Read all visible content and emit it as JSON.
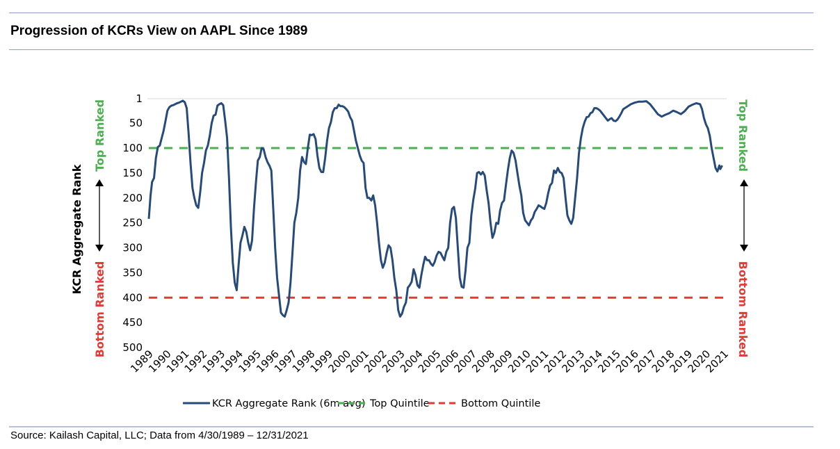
{
  "title": "Progression of KCRs View on AAPL Since 1989",
  "source": "Source: Kailash Capital, LLC; Data from 4/30/1989 – 12/31/2021",
  "colors": {
    "series": "#264a7a",
    "top_quintile": "#4caf50",
    "bottom_quintile": "#e53935",
    "rule": "#8ea2c8"
  },
  "chart_data": {
    "type": "line",
    "title": "Progression of KCRs View on AAPL Since 1989",
    "xlabel": "",
    "ylabel": "KCR Aggregate Rank",
    "y_inverted": true,
    "ylim": [
      1,
      500
    ],
    "xlim": [
      1989.33,
      2022.0
    ],
    "y_ticks": [
      "1",
      "50",
      "100",
      "150",
      "200",
      "250",
      "300",
      "350",
      "400",
      "450",
      "500"
    ],
    "x_ticks": [
      "1989",
      "1990",
      "1991",
      "1992",
      "1993",
      "1994",
      "1995",
      "1996",
      "1997",
      "1998",
      "1999",
      "2000",
      "2001",
      "2002",
      "2003",
      "2004",
      "2005",
      "2006",
      "2007",
      "2008",
      "2009",
      "2010",
      "2011",
      "2012",
      "2013",
      "2014",
      "2015",
      "2016",
      "2017",
      "2018",
      "2019",
      "2020",
      "2021"
    ],
    "left_annotations": {
      "top": "Top Ranked",
      "bottom": "Bottom Ranked"
    },
    "right_annotations": {
      "top": "Top Ranked",
      "bottom": "Bottom Ranked"
    },
    "legend_position": "bottom",
    "series": [
      {
        "name": "KCR Aggregate Rank (6m avg)",
        "style": "solid",
        "points": [
          [
            1989.33,
            242
          ],
          [
            1989.42,
            195
          ],
          [
            1989.5,
            168
          ],
          [
            1989.6,
            160
          ],
          [
            1989.7,
            120
          ],
          [
            1989.8,
            98
          ],
          [
            1989.9,
            95
          ],
          [
            1990.0,
            80
          ],
          [
            1990.1,
            65
          ],
          [
            1990.2,
            45
          ],
          [
            1990.3,
            25
          ],
          [
            1990.4,
            18
          ],
          [
            1990.5,
            15
          ],
          [
            1990.6,
            14
          ],
          [
            1990.7,
            12
          ],
          [
            1990.8,
            10
          ],
          [
            1990.9,
            9
          ],
          [
            1991.0,
            7
          ],
          [
            1991.1,
            5
          ],
          [
            1991.2,
            8
          ],
          [
            1991.3,
            20
          ],
          [
            1991.4,
            70
          ],
          [
            1991.5,
            130
          ],
          [
            1991.6,
            180
          ],
          [
            1991.7,
            200
          ],
          [
            1991.8,
            215
          ],
          [
            1991.9,
            220
          ],
          [
            1992.0,
            190
          ],
          [
            1992.1,
            150
          ],
          [
            1992.2,
            130
          ],
          [
            1992.3,
            105
          ],
          [
            1992.4,
            95
          ],
          [
            1992.5,
            75
          ],
          [
            1992.6,
            50
          ],
          [
            1992.7,
            35
          ],
          [
            1992.8,
            33
          ],
          [
            1992.9,
            15
          ],
          [
            1993.0,
            12
          ],
          [
            1993.1,
            10
          ],
          [
            1993.2,
            14
          ],
          [
            1993.3,
            45
          ],
          [
            1993.4,
            80
          ],
          [
            1993.5,
            160
          ],
          [
            1993.6,
            260
          ],
          [
            1993.7,
            330
          ],
          [
            1993.8,
            370
          ],
          [
            1993.9,
            385
          ],
          [
            1994.0,
            335
          ],
          [
            1994.1,
            290
          ],
          [
            1994.2,
            275
          ],
          [
            1994.3,
            258
          ],
          [
            1994.4,
            268
          ],
          [
            1994.5,
            290
          ],
          [
            1994.6,
            305
          ],
          [
            1994.7,
            285
          ],
          [
            1994.8,
            220
          ],
          [
            1994.9,
            170
          ],
          [
            1995.0,
            125
          ],
          [
            1995.1,
            118
          ],
          [
            1995.2,
            100
          ],
          [
            1995.3,
            102
          ],
          [
            1995.4,
            118
          ],
          [
            1995.5,
            128
          ],
          [
            1995.6,
            135
          ],
          [
            1995.7,
            145
          ],
          [
            1995.8,
            220
          ],
          [
            1995.9,
            300
          ],
          [
            1996.0,
            360
          ],
          [
            1996.1,
            395
          ],
          [
            1996.2,
            430
          ],
          [
            1996.3,
            435
          ],
          [
            1996.4,
            438
          ],
          [
            1996.5,
            425
          ],
          [
            1996.6,
            410
          ],
          [
            1996.7,
            370
          ],
          [
            1996.8,
            310
          ],
          [
            1996.9,
            250
          ],
          [
            1997.0,
            230
          ],
          [
            1997.1,
            200
          ],
          [
            1997.2,
            145
          ],
          [
            1997.3,
            118
          ],
          [
            1997.4,
            128
          ],
          [
            1997.5,
            132
          ],
          [
            1997.6,
            100
          ],
          [
            1997.7,
            73
          ],
          [
            1997.8,
            74
          ],
          [
            1997.9,
            72
          ],
          [
            1998.0,
            82
          ],
          [
            1998.1,
            115
          ],
          [
            1998.2,
            140
          ],
          [
            1998.3,
            148
          ],
          [
            1998.4,
            148
          ],
          [
            1998.5,
            120
          ],
          [
            1998.6,
            85
          ],
          [
            1998.7,
            60
          ],
          [
            1998.8,
            48
          ],
          [
            1998.9,
            28
          ],
          [
            1999.0,
            20
          ],
          [
            1999.1,
            20
          ],
          [
            1999.2,
            13
          ],
          [
            1999.3,
            16
          ],
          [
            1999.4,
            16
          ],
          [
            1999.5,
            18
          ],
          [
            1999.6,
            22
          ],
          [
            1999.7,
            27
          ],
          [
            1999.8,
            38
          ],
          [
            1999.9,
            45
          ],
          [
            2000.0,
            65
          ],
          [
            2000.1,
            85
          ],
          [
            2000.2,
            100
          ],
          [
            2000.3,
            115
          ],
          [
            2000.4,
            125
          ],
          [
            2000.5,
            130
          ],
          [
            2000.6,
            180
          ],
          [
            2000.7,
            200
          ],
          [
            2000.8,
            200
          ],
          [
            2000.9,
            205
          ],
          [
            2001.0,
            195
          ],
          [
            2001.1,
            215
          ],
          [
            2001.2,
            250
          ],
          [
            2001.3,
            290
          ],
          [
            2001.4,
            325
          ],
          [
            2001.5,
            340
          ],
          [
            2001.6,
            330
          ],
          [
            2001.7,
            310
          ],
          [
            2001.8,
            295
          ],
          [
            2001.9,
            300
          ],
          [
            2002.0,
            325
          ],
          [
            2002.1,
            360
          ],
          [
            2002.2,
            385
          ],
          [
            2002.3,
            425
          ],
          [
            2002.4,
            438
          ],
          [
            2002.5,
            432
          ],
          [
            2002.6,
            418
          ],
          [
            2002.7,
            410
          ],
          [
            2002.8,
            380
          ],
          [
            2002.9,
            375
          ],
          [
            2003.0,
            368
          ],
          [
            2003.1,
            343
          ],
          [
            2003.2,
            355
          ],
          [
            2003.3,
            375
          ],
          [
            2003.4,
            380
          ],
          [
            2003.5,
            355
          ],
          [
            2003.6,
            335
          ],
          [
            2003.7,
            318
          ],
          [
            2003.8,
            325
          ],
          [
            2003.9,
            325
          ],
          [
            2004.0,
            332
          ],
          [
            2004.1,
            336
          ],
          [
            2004.2,
            328
          ],
          [
            2004.3,
            315
          ],
          [
            2004.4,
            308
          ],
          [
            2004.5,
            310
          ],
          [
            2004.6,
            318
          ],
          [
            2004.7,
            325
          ],
          [
            2004.8,
            308
          ],
          [
            2004.9,
            300
          ],
          [
            2005.0,
            250
          ],
          [
            2005.1,
            222
          ],
          [
            2005.2,
            218
          ],
          [
            2005.3,
            240
          ],
          [
            2005.4,
            300
          ],
          [
            2005.5,
            360
          ],
          [
            2005.6,
            378
          ],
          [
            2005.7,
            380
          ],
          [
            2005.8,
            345
          ],
          [
            2005.9,
            300
          ],
          [
            2006.0,
            290
          ],
          [
            2006.1,
            235
          ],
          [
            2006.2,
            205
          ],
          [
            2006.3,
            182
          ],
          [
            2006.4,
            150
          ],
          [
            2006.5,
            148
          ],
          [
            2006.6,
            153
          ],
          [
            2006.7,
            148
          ],
          [
            2006.8,
            155
          ],
          [
            2006.9,
            185
          ],
          [
            2007.0,
            210
          ],
          [
            2007.1,
            250
          ],
          [
            2007.2,
            280
          ],
          [
            2007.3,
            270
          ],
          [
            2007.4,
            250
          ],
          [
            2007.5,
            252
          ],
          [
            2007.6,
            225
          ],
          [
            2007.7,
            210
          ],
          [
            2007.8,
            205
          ],
          [
            2007.9,
            175
          ],
          [
            2008.0,
            145
          ],
          [
            2008.1,
            120
          ],
          [
            2008.2,
            105
          ],
          [
            2008.3,
            110
          ],
          [
            2008.4,
            125
          ],
          [
            2008.5,
            150
          ],
          [
            2008.6,
            175
          ],
          [
            2008.7,
            195
          ],
          [
            2008.8,
            230
          ],
          [
            2008.9,
            245
          ],
          [
            2009.0,
            250
          ],
          [
            2009.1,
            255
          ],
          [
            2009.2,
            245
          ],
          [
            2009.3,
            240
          ],
          [
            2009.4,
            228
          ],
          [
            2009.5,
            222
          ],
          [
            2009.6,
            215
          ],
          [
            2009.7,
            217
          ],
          [
            2009.8,
            220
          ],
          [
            2009.9,
            222
          ],
          [
            2010.0,
            210
          ],
          [
            2010.1,
            190
          ],
          [
            2010.2,
            175
          ],
          [
            2010.3,
            170
          ],
          [
            2010.4,
            145
          ],
          [
            2010.5,
            150
          ],
          [
            2010.6,
            140
          ],
          [
            2010.7,
            148
          ],
          [
            2010.8,
            150
          ],
          [
            2010.9,
            160
          ],
          [
            2011.0,
            200
          ],
          [
            2011.1,
            235
          ],
          [
            2011.2,
            245
          ],
          [
            2011.3,
            252
          ],
          [
            2011.4,
            240
          ],
          [
            2011.5,
            200
          ],
          [
            2011.6,
            160
          ],
          [
            2011.7,
            110
          ],
          [
            2011.8,
            80
          ],
          [
            2011.9,
            60
          ],
          [
            2012.0,
            47
          ],
          [
            2012.1,
            38
          ],
          [
            2012.2,
            37
          ],
          [
            2012.3,
            30
          ],
          [
            2012.4,
            28
          ],
          [
            2012.5,
            20
          ],
          [
            2012.6,
            20
          ],
          [
            2012.7,
            22
          ],
          [
            2012.8,
            25
          ],
          [
            2012.9,
            30
          ],
          [
            2013.0,
            35
          ],
          [
            2013.1,
            40
          ],
          [
            2013.2,
            45
          ],
          [
            2013.3,
            42
          ],
          [
            2013.4,
            40
          ],
          [
            2013.5,
            45
          ],
          [
            2013.6,
            46
          ],
          [
            2013.7,
            43
          ],
          [
            2013.8,
            37
          ],
          [
            2013.9,
            30
          ],
          [
            2014.0,
            22
          ],
          [
            2014.2,
            17
          ],
          [
            2014.4,
            12
          ],
          [
            2014.6,
            9
          ],
          [
            2014.8,
            7
          ],
          [
            2015.0,
            7
          ],
          [
            2015.2,
            6
          ],
          [
            2015.4,
            12
          ],
          [
            2015.6,
            22
          ],
          [
            2015.8,
            32
          ],
          [
            2016.0,
            37
          ],
          [
            2016.2,
            33
          ],
          [
            2016.4,
            30
          ],
          [
            2016.6,
            25
          ],
          [
            2016.8,
            28
          ],
          [
            2016.9,
            30
          ],
          [
            2017.0,
            32
          ],
          [
            2017.2,
            26
          ],
          [
            2017.4,
            17
          ],
          [
            2017.6,
            13
          ],
          [
            2017.8,
            10
          ],
          [
            2018.0,
            12
          ],
          [
            2018.1,
            22
          ],
          [
            2018.2,
            40
          ],
          [
            2018.3,
            52
          ],
          [
            2018.4,
            60
          ],
          [
            2018.5,
            75
          ],
          [
            2018.6,
            100
          ],
          [
            2018.7,
            120
          ],
          [
            2018.8,
            140
          ],
          [
            2018.9,
            147
          ],
          [
            2019.0,
            135
          ],
          [
            2019.05,
            142
          ],
          [
            2019.15,
            135
          ]
        ]
      },
      {
        "name": "Top Quintile",
        "style": "dashed",
        "value": 100
      },
      {
        "name": "Bottom Quintile",
        "style": "dashed",
        "value": 400
      }
    ]
  },
  "legend": [
    {
      "label": "KCR Aggregate Rank (6m avg)",
      "style": "solid"
    },
    {
      "label": "Top Quintile",
      "style": "dashed"
    },
    {
      "label": "Bottom Quintile",
      "style": "dashed"
    }
  ]
}
